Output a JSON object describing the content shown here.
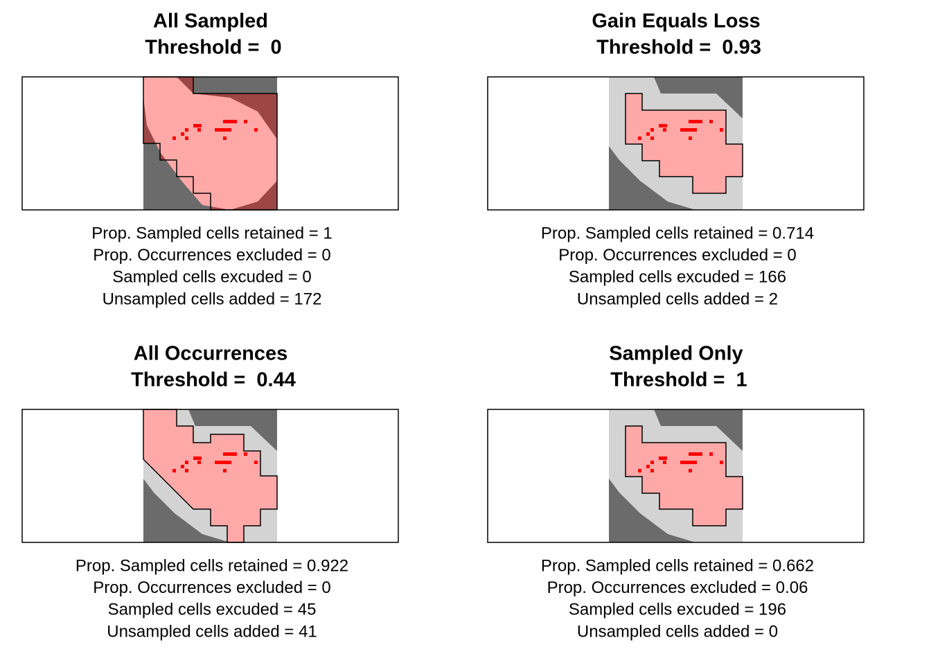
{
  "panels": [
    {
      "title": "All Sampled",
      "subtitle": "Threshold =  0",
      "stats": [
        "Prop. Sampled cells retained = 1",
        "Prop. Occurrences excluded = 0",
        "Sampled cells excuded = 0",
        "Unsampled cells added = 172"
      ]
    },
    {
      "title": "Gain Equals Loss",
      "subtitle": "Threshold =  0.93",
      "stats": [
        "Prop. Sampled cells retained = 0.714",
        "Prop. Occurrences excluded = 0",
        "Sampled cells excuded = 166",
        "Unsampled cells added = 2"
      ]
    },
    {
      "title": "All Occurrences",
      "subtitle": "Threshold =  0.44",
      "stats": [
        "Prop. Sampled cells retained = 0.922",
        "Prop. Occurrences excluded = 0",
        "Sampled cells excuded = 45",
        "Unsampled cells added = 41"
      ]
    },
    {
      "title": "Sampled Only",
      "subtitle": "Threshold =  1",
      "stats": [
        "Prop. Sampled cells retained = 0.662",
        "Prop. Occurrences excluded = 0.06",
        "Sampled cells excuded = 196",
        "Unsampled cells added = 0"
      ]
    }
  ]
}
